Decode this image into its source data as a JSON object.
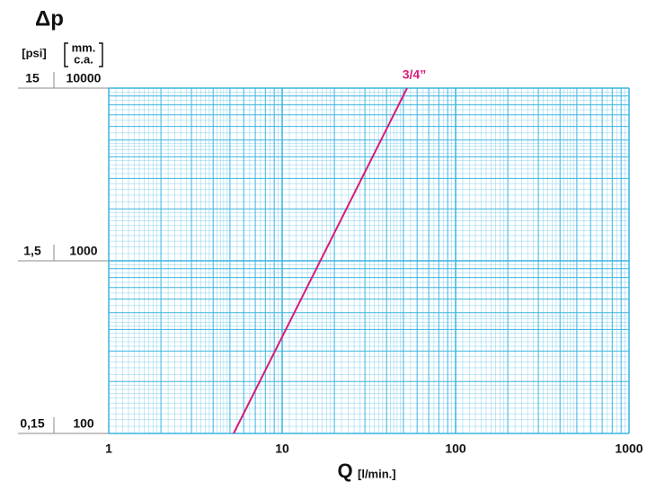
{
  "chart_data": {
    "type": "line",
    "title": "Δp",
    "y_unit": "[psi]",
    "y2_unit": [
      "mm.",
      "c.a."
    ],
    "x_label": "Q",
    "x_unit": "[l/min.]",
    "x": [
      5.25,
      52.5
    ],
    "series": [
      {
        "name": "3/4”",
        "color": "#d81b7a",
        "values": [
          100,
          10000
        ]
      }
    ],
    "xlim": [
      1,
      1000
    ],
    "xticks": [
      1,
      10,
      100,
      1000
    ],
    "ylim": [
      100,
      10000
    ],
    "yticks": [
      100,
      1000,
      10000
    ],
    "y2lim": [
      0.15,
      15
    ],
    "y2ticks": [
      {
        "value": 0.15,
        "label": "0,15"
      },
      {
        "value": 1.5,
        "label": "1,5"
      },
      {
        "value": 15,
        "label": "15"
      }
    ],
    "log_scale": true,
    "grid": true,
    "grid_color": "#3cb4e0"
  }
}
